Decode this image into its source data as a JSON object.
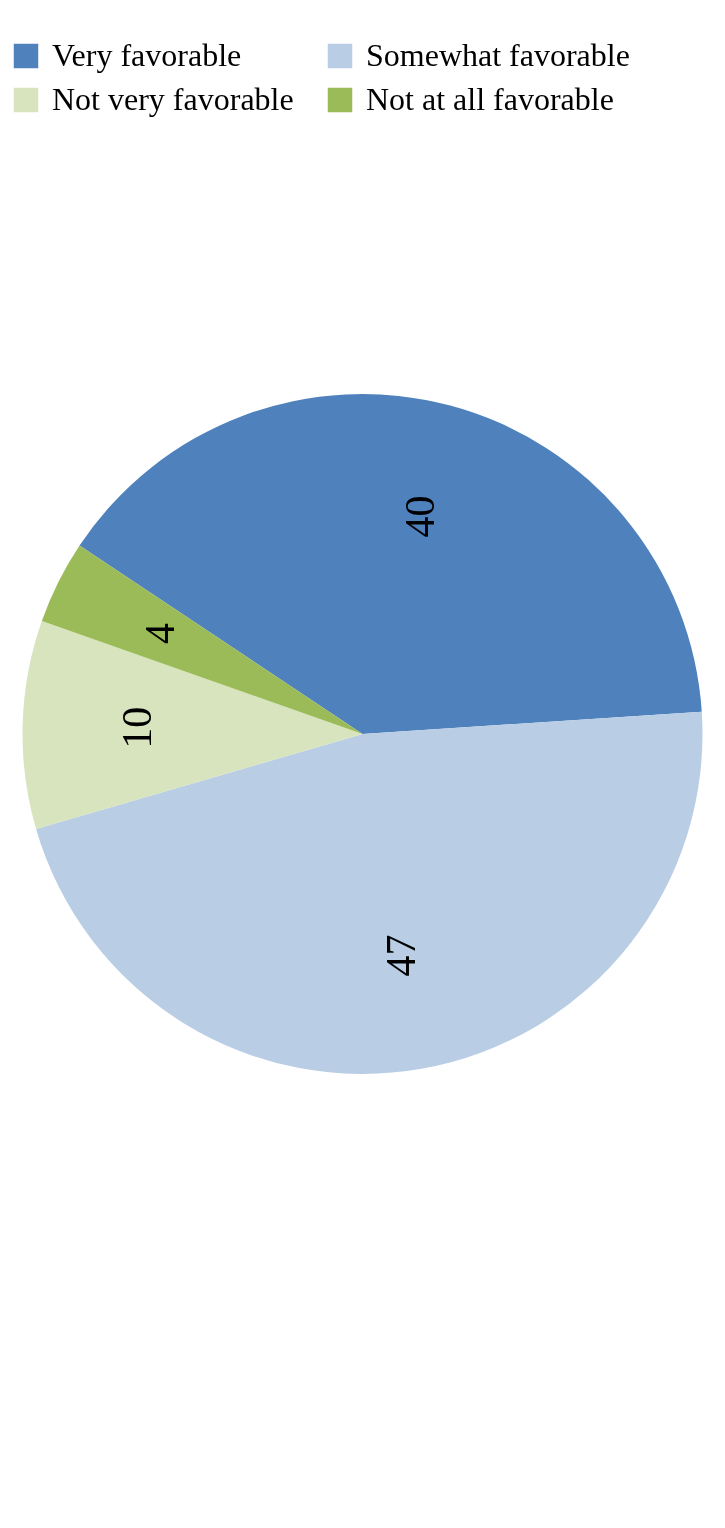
{
  "chart_data": {
    "type": "pie",
    "categories": [
      "Very favorable",
      "Somewhat favorable",
      "Not very favorable",
      "Not at all favorable"
    ],
    "values": [
      40,
      47,
      10,
      4
    ],
    "colors": [
      "#4f81bd",
      "#b9cde5",
      "#d7e4bd",
      "#9bbb59"
    ],
    "data_labels": true,
    "legend": "top"
  }
}
